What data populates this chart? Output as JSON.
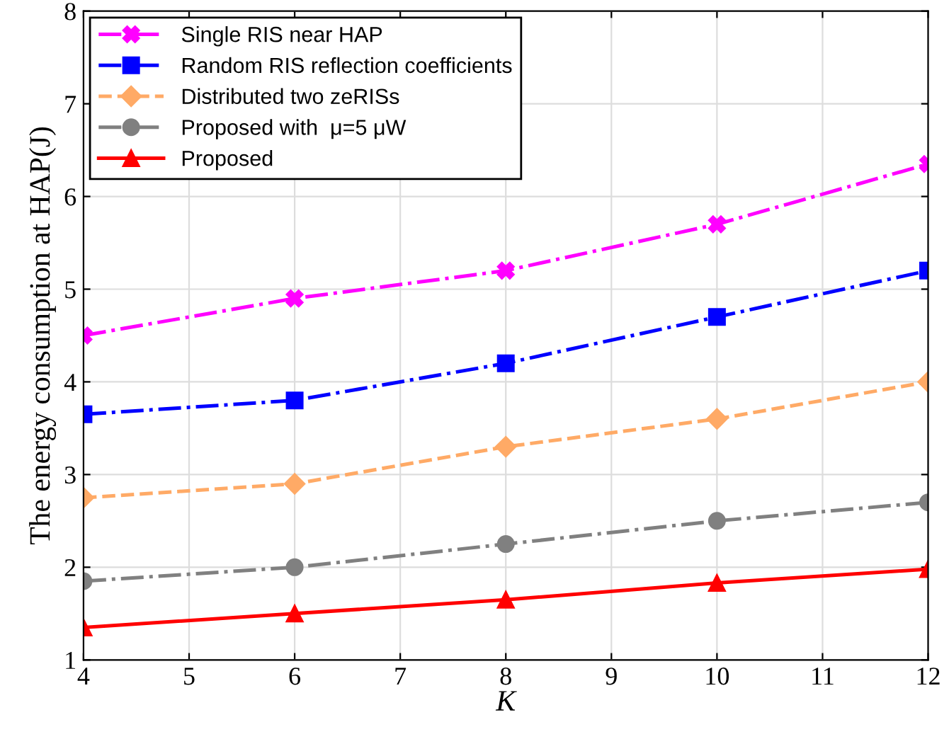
{
  "chart_data": {
    "type": "line",
    "xlabel": "K",
    "ylabel": "The energy consumption at HAP(J)",
    "x": [
      4,
      6,
      8,
      10,
      12
    ],
    "series": [
      {
        "name": "Single RIS near HAP",
        "color": "#ff00ff",
        "marker": "cross",
        "line_style": "dashdot",
        "values": [
          4.5,
          4.9,
          5.2,
          5.7,
          6.35
        ]
      },
      {
        "name": "Random RIS reflection coefficients",
        "color": "#0000ff",
        "marker": "square",
        "line_style": "dashdot",
        "values": [
          3.65,
          3.8,
          4.2,
          4.7,
          5.2
        ]
      },
      {
        "name": "Distributed two zeRISs",
        "color": "#ffaa66",
        "marker": "diamond",
        "line_style": "dashed",
        "values": [
          2.75,
          2.9,
          3.3,
          3.6,
          4.0
        ]
      },
      {
        "name": "Proposed with  μ=5 μW",
        "color": "#808080",
        "marker": "circle",
        "line_style": "dashdot",
        "values": [
          1.85,
          2.0,
          2.25,
          2.5,
          2.7
        ]
      },
      {
        "name": "Proposed",
        "color": "#ff0000",
        "marker": "triangle",
        "line_style": "solid",
        "values": [
          1.35,
          1.5,
          1.65,
          1.83,
          1.98
        ]
      }
    ],
    "xlim": [
      4,
      12
    ],
    "xticks": [
      4,
      5,
      6,
      7,
      8,
      9,
      10,
      11,
      12
    ],
    "ylim": [
      1,
      8
    ],
    "yticks": [
      1,
      2,
      3,
      4,
      5,
      6,
      7,
      8
    ],
    "grid": true,
    "legend": "top left"
  }
}
